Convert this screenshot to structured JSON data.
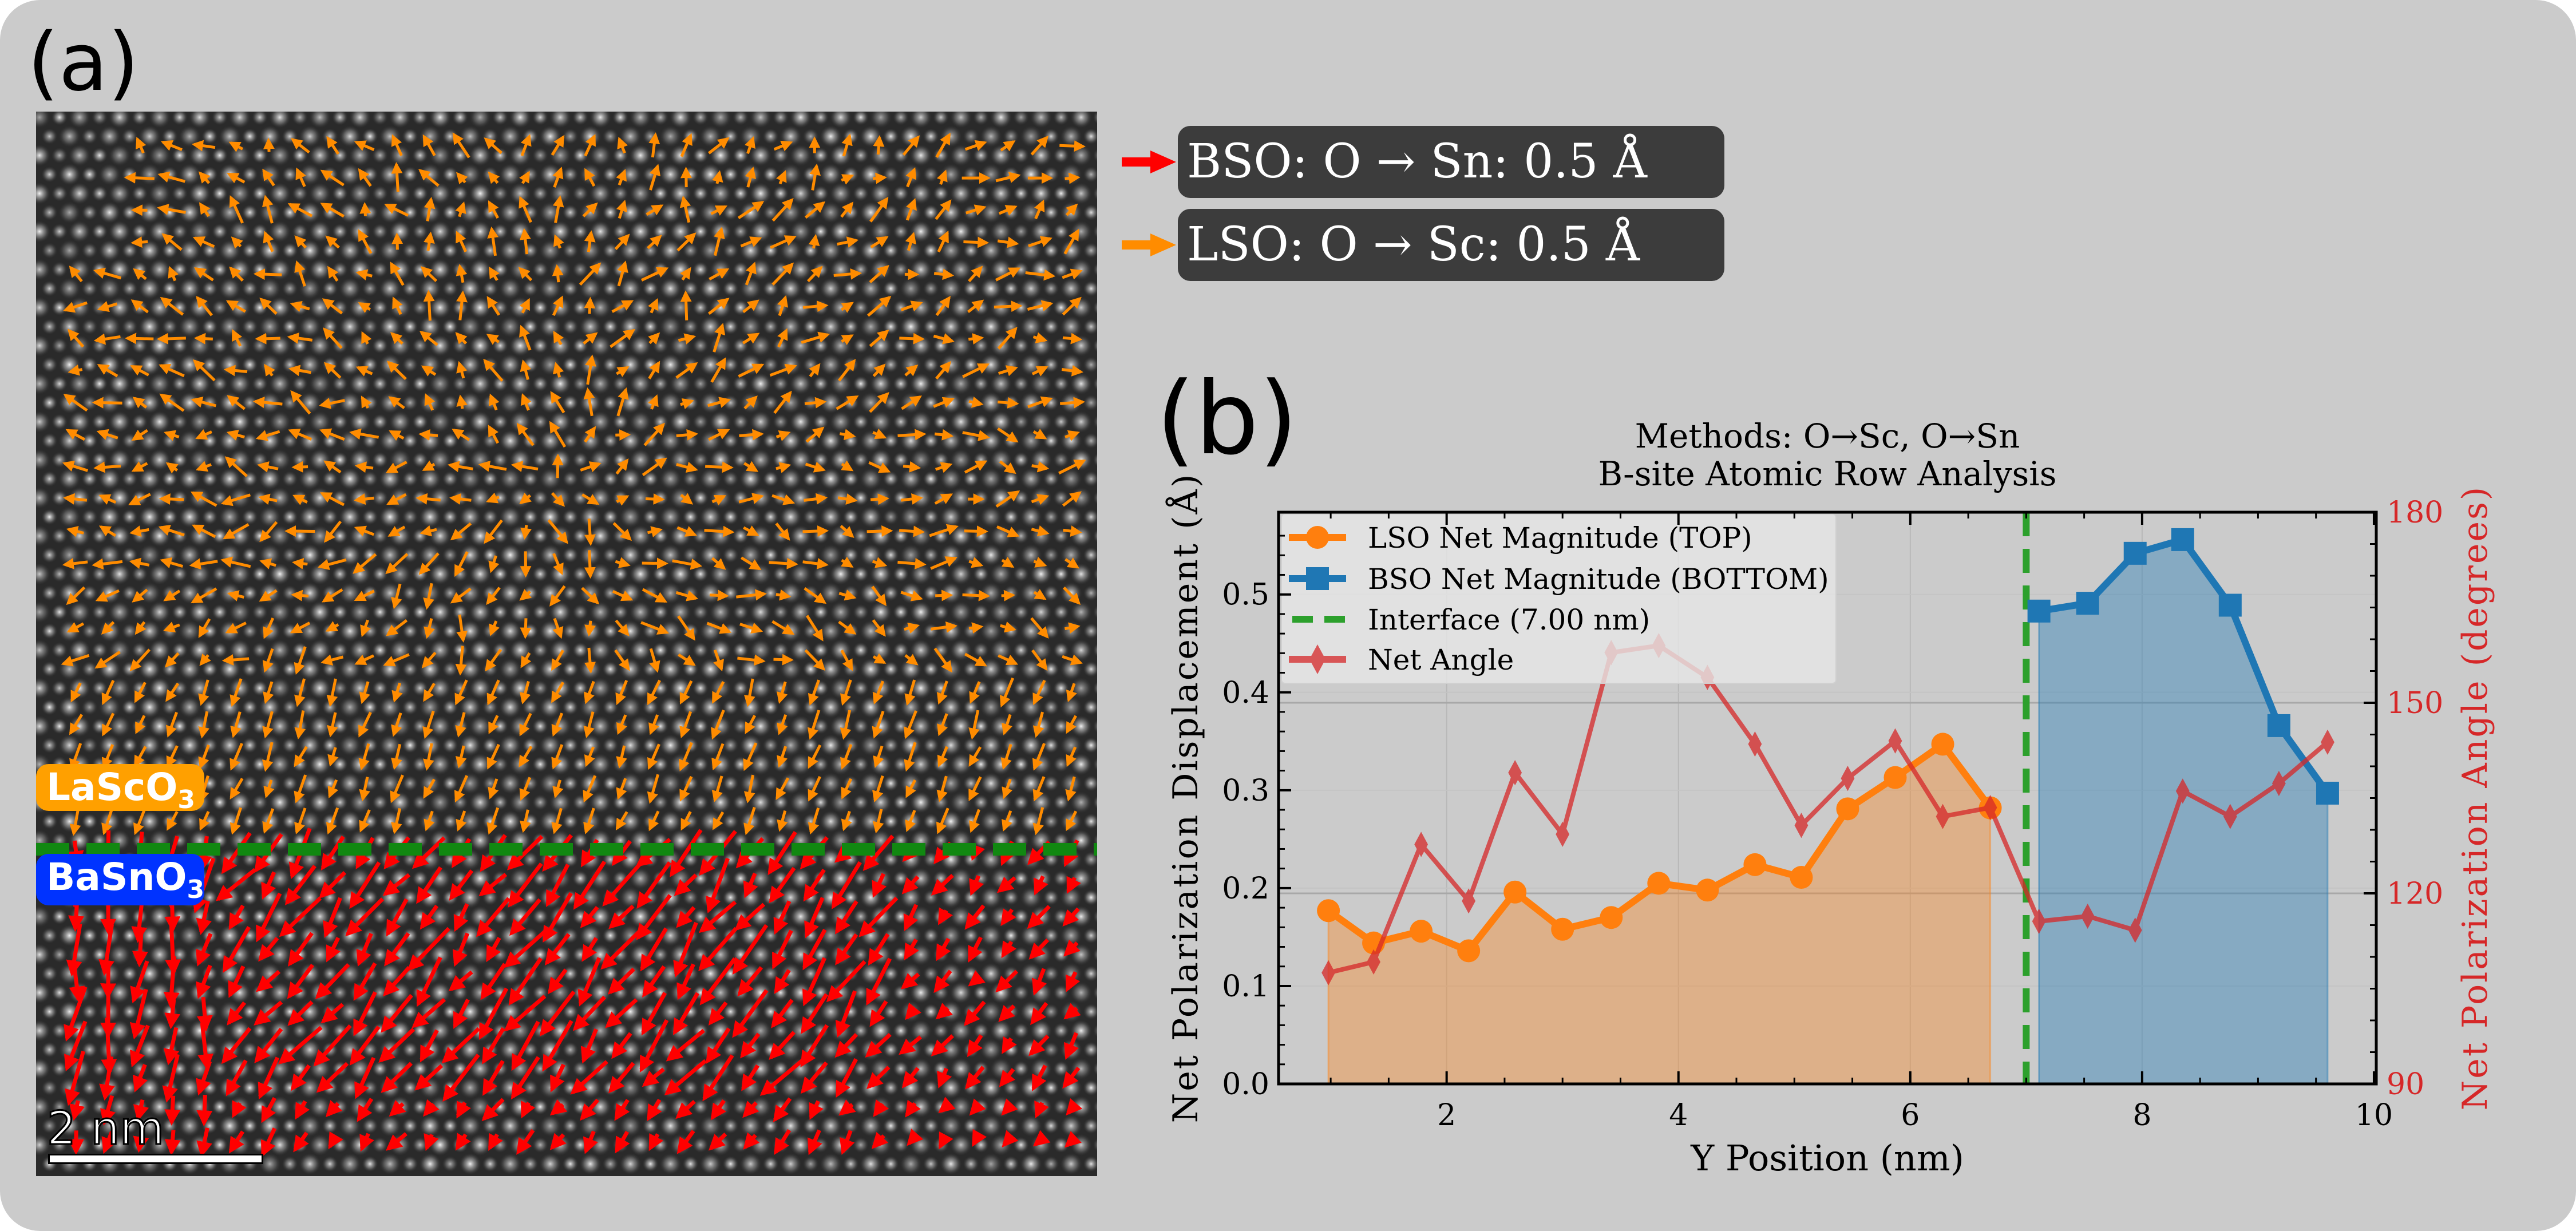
{
  "panel_a": {
    "label": "(a)",
    "top_layer": "LaScO",
    "top_layer_sub": "3",
    "bottom_layer": "BaSnO",
    "bottom_layer_sub": "3",
    "scale_bar": "2 nm",
    "colors": {
      "lso_arrow": "#ff8c00",
      "bso_arrow": "#ff0000",
      "interface": "#118811",
      "lso_label_bg": "#ffa000",
      "bso_label_bg": "#0033ff"
    },
    "key": [
      {
        "text": "BSO: O → Sn: 0.5 Å",
        "color": "#ff0000"
      },
      {
        "text": "LSO: O → Sc: 0.5 Å",
        "color": "#ff8c00"
      }
    ]
  },
  "panel_b": {
    "label": "(b)"
  },
  "chart_data": {
    "type": "line",
    "title": "Methods: O→Sc, O→Sn",
    "subtitle": "B-site Atomic Row Analysis",
    "xlabel": "Y Position (nm)",
    "ylabel": "Net Polarization Displacement (Å)",
    "ylabel_right": "Net Polarization Angle (degrees)",
    "xlim": [
      0.55,
      10.0
    ],
    "ylim": [
      0.0,
      0.584
    ],
    "ylim_right": [
      90,
      180
    ],
    "xticks": [
      "2",
      "4",
      "6",
      "8",
      "10"
    ],
    "xtick_values": [
      2,
      4,
      6,
      8,
      10
    ],
    "yticks": [
      "0.0",
      "0.1",
      "0.2",
      "0.3",
      "0.4",
      "0.5"
    ],
    "ytick_values": [
      0,
      0.1,
      0.2,
      0.3,
      0.4,
      0.5
    ],
    "yticks_right": [
      "90",
      "120",
      "150",
      "180"
    ],
    "ytick_values_right": [
      90,
      120,
      150,
      180
    ],
    "grid": true,
    "legend_position": "top-left",
    "series": [
      {
        "name": "LSO Net Magnitude (TOP)",
        "color": "#ff7f0e",
        "marker": "circle",
        "axis": "left",
        "filled": true,
        "x": [
          0.98,
          1.37,
          1.78,
          2.19,
          2.59,
          3.0,
          3.42,
          3.83,
          4.25,
          4.66,
          5.06,
          5.46,
          5.87,
          6.28,
          6.69
        ],
        "y": [
          0.177,
          0.144,
          0.156,
          0.136,
          0.196,
          0.158,
          0.17,
          0.205,
          0.198,
          0.224,
          0.211,
          0.281,
          0.313,
          0.347,
          0.282
        ]
      },
      {
        "name": "BSO Net Magnitude (BOTTOM)",
        "color": "#1f77b4",
        "marker": "square",
        "axis": "left",
        "filled": true,
        "x": [
          7.11,
          7.53,
          7.94,
          8.35,
          8.76,
          9.18,
          9.6
        ],
        "y": [
          0.483,
          0.491,
          0.542,
          0.556,
          0.489,
          0.366,
          0.297
        ]
      },
      {
        "name": "Interface (7.00 nm)",
        "color": "#2ca02c",
        "style": "dashed",
        "axis": "left",
        "x_value": 7.0
      },
      {
        "name": "Net Angle",
        "color": "#d62728",
        "marker": "diamond",
        "axis": "right",
        "x": [
          0.98,
          1.37,
          1.78,
          2.19,
          2.59,
          3.0,
          3.42,
          3.83,
          4.25,
          4.66,
          5.06,
          5.46,
          5.87,
          6.28,
          6.69,
          7.11,
          7.53,
          7.94,
          8.35,
          8.76,
          9.18,
          9.6
        ],
        "y": [
          107.5,
          109.2,
          127.7,
          118.8,
          139.0,
          129.3,
          157.9,
          159.0,
          154.0,
          143.5,
          130.7,
          138.1,
          144.0,
          132.1,
          133.5,
          115.6,
          116.4,
          114.2,
          136.1,
          132.1,
          137.3,
          143.8
        ]
      }
    ]
  }
}
